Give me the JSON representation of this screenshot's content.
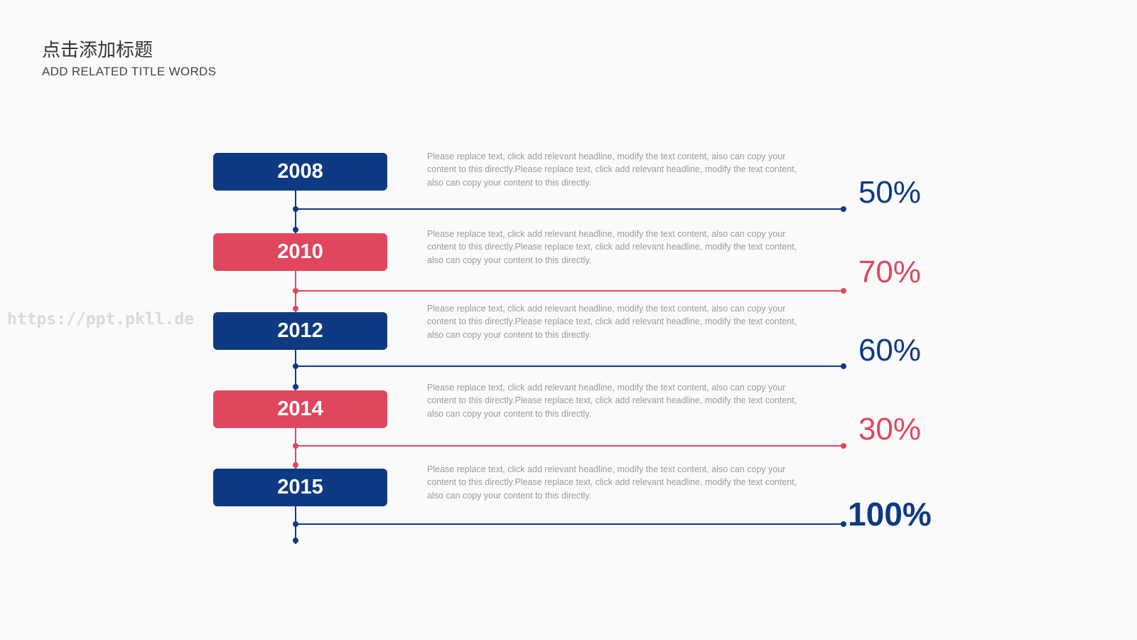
{
  "header": {
    "title": "点击添加标题",
    "subtitle": "ADD RELATED TITLE WORDS"
  },
  "watermark": "https://ppt.pkll.de",
  "timeline": [
    {
      "year": "2008",
      "text": "Please replace text, click add relevant headline, modify the text content, also can copy your content to this directly.Please replace text, click add relevant headline, modify the text content, also can copy your content to this directly.",
      "percent": "50%",
      "color": "#0e3a84"
    },
    {
      "year": "2010",
      "text": "Please replace text, click add relevant headline, modify the text content, also can copy your content to this directly.Please replace text, click add relevant headline, modify the text content, also can copy your content to this directly.",
      "percent": "70%",
      "color": "#e0475f"
    },
    {
      "year": "2012",
      "text": "Please replace text, click add relevant headline, modify the text content, also can copy your content to this directly.Please replace text, click add relevant headline, modify the text content, also can copy your content to this directly.",
      "percent": "60%",
      "color": "#0e3a84"
    },
    {
      "year": "2014",
      "text": "Please replace text, click add relevant headline, modify the text content, also can copy your content to this directly.Please replace text, click add relevant headline, modify the text content, also can copy your content to this directly.",
      "percent": "30%",
      "color": "#e0475f"
    },
    {
      "year": "2015",
      "text": "Please replace text, click add relevant headline, modify the text content, also can copy your content to this directly.Please replace text, click add relevant headline, modify the text content, also can copy your content to this directly.",
      "percent": "100%",
      "color": "#0e3a84"
    }
  ]
}
